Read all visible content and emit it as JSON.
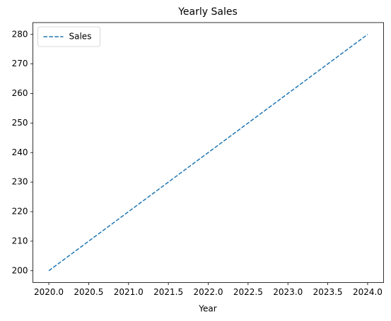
{
  "chart_data": {
    "type": "line",
    "title": "Yearly Sales",
    "x_label": "Year",
    "x": [
      2020,
      2021,
      2022,
      2023,
      2024
    ],
    "series": [
      {
        "name": "Sales",
        "color": "#1f77b4",
        "linestyle": "dashed",
        "values": [
          200,
          220,
          240,
          260,
          280
        ]
      }
    ],
    "xlim": [
      2019.8,
      2024.2
    ],
    "xticks": [
      {
        "value": 2020,
        "label": "2020.0"
      },
      {
        "value": 2020.5,
        "label": "2020.5"
      },
      {
        "value": 2021,
        "label": "2021.0"
      },
      {
        "value": 2021.5,
        "label": "2021.5"
      },
      {
        "value": 2022,
        "label": "2022.0"
      },
      {
        "value": 2022.5,
        "label": "2022.5"
      },
      {
        "value": 2023,
        "label": "2023.0"
      },
      {
        "value": 2023.5,
        "label": "2023.5"
      },
      {
        "value": 2024,
        "label": "2024.0"
      }
    ],
    "ylim": [
      196,
      284
    ],
    "yticks": [
      200,
      210,
      220,
      230,
      240,
      250,
      260,
      270,
      280
    ],
    "grid": false,
    "legend": "upper-left"
  }
}
